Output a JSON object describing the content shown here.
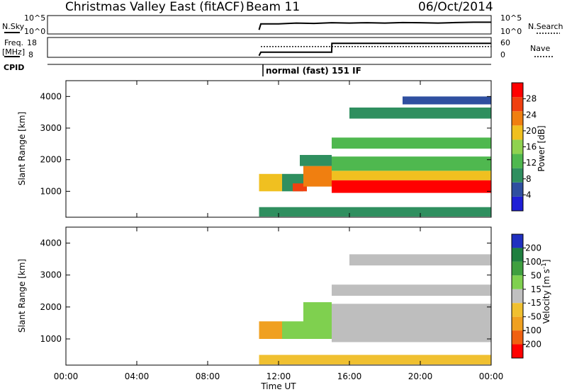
{
  "header": {
    "title": "Christmas Valley East (fitACF)",
    "beam": "Beam 11",
    "date": "06/Oct/2014"
  },
  "status_panels": {
    "nsky_label": "N.Sky",
    "noise_ticks": [
      "10^5",
      "10^0"
    ],
    "nsearch_label": "N.Search",
    "nsearch_ticks": [
      "10^5",
      "10^0"
    ],
    "freq_label": "Freq.",
    "freq_unit": "[MHz]",
    "freq_ticks": [
      "18",
      "8"
    ],
    "nave_label": "Nave",
    "nave_ticks": [
      "60",
      "0"
    ],
    "cpid_label": "CPID",
    "cpid_value": "normal (fast) 151 IF"
  },
  "x_axis": {
    "title": "Time UT",
    "ticks": [
      "00:00",
      "04:00",
      "08:00",
      "12:00",
      "16:00",
      "20:00",
      "00:00"
    ]
  },
  "colors": {
    "power_scale": [
      "#1f1fd6",
      "#2f4fa0",
      "#2f8f5f",
      "#4fb84f",
      "#8fd24f",
      "#f0c020",
      "#f07f10",
      "#f04010",
      "#ff0000"
    ],
    "velocity_scale": [
      "#2030c0",
      "#1f7f3f",
      "#3f9f3f",
      "#7fd04f",
      "#c0c0c0",
      "#f0c030",
      "#f0a020",
      "#f06010",
      "#ff0000"
    ],
    "ground_scatter": "#bebebe"
  },
  "chart_data": [
    {
      "type": "line",
      "panel": "noise",
      "ylabel": "N.Sky",
      "y2label": "N.Search",
      "x_unit": "hours UT",
      "xlim": [
        0,
        24
      ],
      "series": [
        {
          "name": "N.Sky",
          "x": [
            10.9,
            11.0,
            12,
            13,
            14,
            15,
            16,
            17,
            18,
            19,
            20,
            21,
            22,
            23,
            24
          ],
          "values": [
            0.2,
            0.55,
            0.55,
            0.6,
            0.58,
            0.62,
            0.6,
            0.62,
            0.6,
            0.63,
            0.62,
            0.6,
            0.63,
            0.65,
            0.65
          ]
        }
      ]
    },
    {
      "type": "line",
      "panel": "frequency_and_nave",
      "ylabel": "Freq. [MHz]",
      "ylim": [
        8,
        18
      ],
      "y2label": "Nave",
      "y2lim": [
        0,
        60
      ],
      "xlim": [
        0,
        24
      ],
      "series": [
        {
          "name": "Freq.",
          "x": [
            10.9,
            11.0,
            15.0,
            15.01,
            24
          ],
          "values": [
            8.5,
            10.5,
            10.5,
            15.5,
            15.5
          ]
        },
        {
          "name": "Nave",
          "x": [
            11.0,
            24
          ],
          "values": [
            34,
            34
          ]
        }
      ]
    },
    {
      "type": "heatmap",
      "panel": "power",
      "xlabel": "",
      "ylabel": "Slant Range [km]",
      "xlim": [
        0,
        24
      ],
      "ylim": [
        180,
        4500
      ],
      "yticks": [
        1000,
        2000,
        3000,
        4000
      ],
      "colorbar": {
        "label": "Power [dB]",
        "ticks": [
          4,
          8,
          12,
          16,
          20,
          24,
          28
        ],
        "range": [
          0,
          32
        ]
      },
      "echo_regions": [
        {
          "t": [
            10.9,
            12.2
          ],
          "r": [
            1000,
            1550
          ],
          "value": 18
        },
        {
          "t": [
            12.2,
            13.4
          ],
          "r": [
            1000,
            1550
          ],
          "value": 10
        },
        {
          "t": [
            12.8,
            13.6
          ],
          "r": [
            1000,
            1250
          ],
          "value": 28
        },
        {
          "t": [
            13.4,
            15.0
          ],
          "r": [
            1150,
            1800
          ],
          "value": 24
        },
        {
          "t": [
            13.2,
            15.0
          ],
          "r": [
            1800,
            2150
          ],
          "value": 10
        },
        {
          "t": [
            15.0,
            24.0
          ],
          "r": [
            950,
            1350
          ],
          "value": 30
        },
        {
          "t": [
            15.0,
            24.0
          ],
          "r": [
            1350,
            1650
          ],
          "value": 20
        },
        {
          "t": [
            15.0,
            24.0
          ],
          "r": [
            1650,
            2100
          ],
          "value": 14
        },
        {
          "t": [
            15.0,
            24.0
          ],
          "r": [
            2350,
            2700
          ],
          "value": 12
        },
        {
          "t": [
            16.0,
            24.0
          ],
          "r": [
            3300,
            3650
          ],
          "value": 8
        },
        {
          "t": [
            19.0,
            24.0
          ],
          "r": [
            3750,
            4000
          ],
          "value": 6
        },
        {
          "t": [
            10.9,
            24.0
          ],
          "r": [
            200,
            500
          ],
          "value": 8
        }
      ]
    },
    {
      "type": "heatmap",
      "panel": "velocity",
      "xlabel": "Time UT",
      "ylabel": "Slant Range [km]",
      "xlim": [
        0,
        24
      ],
      "ylim": [
        180,
        4500
      ],
      "yticks": [
        1000,
        2000,
        3000,
        4000
      ],
      "colorbar": {
        "label": "Velocity [m s^-1]",
        "ticks": [
          200,
          100,
          50,
          15,
          -15,
          -50,
          -100,
          -200
        ]
      },
      "echo_regions": [
        {
          "t": [
            10.9,
            12.2
          ],
          "r": [
            1000,
            1550
          ],
          "value": -60
        },
        {
          "t": [
            12.2,
            13.4
          ],
          "r": [
            1000,
            1550
          ],
          "value": 30
        },
        {
          "t": [
            13.4,
            15.0
          ],
          "r": [
            1000,
            2150
          ],
          "value": 40
        },
        {
          "t": [
            15.0,
            24.0
          ],
          "r": [
            900,
            2100
          ],
          "value": 0
        },
        {
          "t": [
            15.0,
            24.0
          ],
          "r": [
            2350,
            2700
          ],
          "value": 0
        },
        {
          "t": [
            16.0,
            24.0
          ],
          "r": [
            3300,
            3650
          ],
          "value": 0
        },
        {
          "t": [
            10.9,
            24.0
          ],
          "r": [
            200,
            500
          ],
          "value": -40
        }
      ]
    }
  ]
}
